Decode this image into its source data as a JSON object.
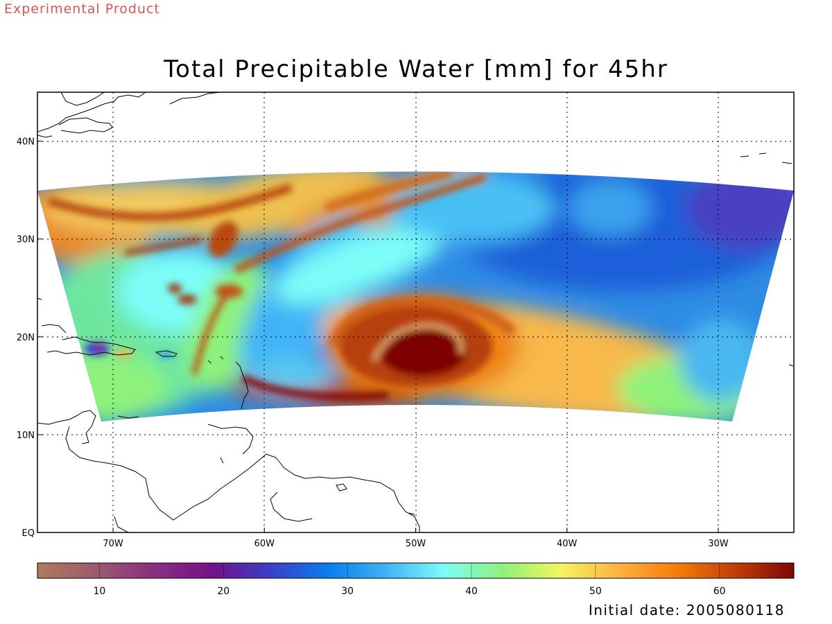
{
  "header": {
    "badge": "Experimental Product",
    "title": "Total Precipitable Water [mm] for 45hr"
  },
  "footer": {
    "initial_date": "Initial date: 2005080118"
  },
  "map": {
    "lon_range": [
      -75,
      -25
    ],
    "lat_range": [
      0,
      45
    ],
    "grid": "dotted",
    "lon_ticks": [
      {
        "value": -70,
        "label": "70W"
      },
      {
        "value": -60,
        "label": "60W"
      },
      {
        "value": -50,
        "label": "50W"
      },
      {
        "value": -40,
        "label": "40W"
      },
      {
        "value": -30,
        "label": "30W"
      }
    ],
    "lat_ticks": [
      {
        "value": 0,
        "label": "EQ"
      },
      {
        "value": 10,
        "label": "10N"
      },
      {
        "value": 20,
        "label": "20N"
      },
      {
        "value": 30,
        "label": "30N"
      },
      {
        "value": 40,
        "label": "40N"
      }
    ]
  },
  "colorbar": {
    "range": [
      5,
      66
    ],
    "ticks": [
      10,
      20,
      30,
      40,
      50,
      60
    ],
    "stops": [
      "#b07a5c",
      "#9a5b6e",
      "#8c2f80",
      "#75108a",
      "#3a3fc8",
      "#0a7cf0",
      "#40b4f6",
      "#7cfdf8",
      "#8ef27a",
      "#f4f460",
      "#ffb040",
      "#f57c08",
      "#c03e08",
      "#7e0606"
    ]
  }
}
